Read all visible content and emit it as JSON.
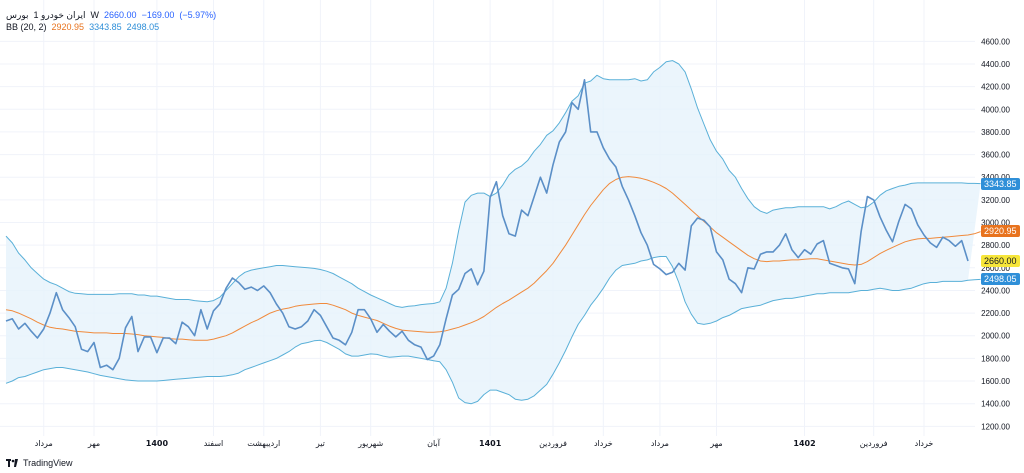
{
  "header": {
    "symbol": "ایران خودرو 1",
    "exchange": "بورس",
    "interval": "W",
    "close": "2660.00",
    "change": "−169.00",
    "change_pct": "(−5.97%)"
  },
  "indicator": {
    "name": "BB (20, 2)",
    "basis": "2920.95",
    "upper": "3343.85",
    "lower": "2498.05"
  },
  "price_tags": {
    "upper": "3343.85",
    "basis": "2920.95",
    "close": "2660.00",
    "lower": "2498.05"
  },
  "brand": "TradingView",
  "colors": {
    "price": "#5b8fc7",
    "band": "#5ab0d8",
    "basis": "#f08a3c",
    "fill": "#e6f3fb",
    "close_tag": "#f7e63a",
    "upper_tag": "#2f8fd8",
    "basis_tag": "#e8731e",
    "lower_tag": "#2f8fd8",
    "change": "#2962ff"
  },
  "chart_data": {
    "type": "line",
    "title": "ایران خودرو 1 · W",
    "ylim": [
      1150,
      4700
    ],
    "y_ticks": [
      1200,
      1400,
      1600,
      1800,
      2000,
      2200,
      2400,
      2600,
      2800,
      3000,
      3200,
      3400,
      3600,
      3800,
      4000,
      4200,
      4400,
      4600
    ],
    "x_labels": [
      {
        "label": "مرداد",
        "i": 6
      },
      {
        "label": "مهر",
        "i": 14
      },
      {
        "label": "1400",
        "i": 24
      },
      {
        "label": "اسفند",
        "i": 33
      },
      {
        "label": "اردیبهشت",
        "i": 41
      },
      {
        "label": "تیر",
        "i": 50
      },
      {
        "label": "شهریور",
        "i": 58
      },
      {
        "label": "آبان",
        "i": 68
      },
      {
        "label": "1401",
        "i": 77
      },
      {
        "label": "فروردین",
        "i": 87
      },
      {
        "label": "خرداد",
        "i": 95
      },
      {
        "label": "مرداد",
        "i": 104
      },
      {
        "label": "مهر",
        "i": 113
      },
      {
        "label": "1402",
        "i": 127
      },
      {
        "label": "فروردین",
        "i": 138
      },
      {
        "label": "خرداد",
        "i": 146
      }
    ],
    "series": [
      {
        "name": "Price",
        "values": [
          2130,
          2150,
          2060,
          2110,
          2040,
          1980,
          2060,
          2200,
          2380,
          2230,
          2160,
          2080,
          1880,
          1860,
          1940,
          1720,
          1740,
          1700,
          1800,
          2070,
          2170,
          1860,
          1990,
          1990,
          1850,
          1980,
          1980,
          1930,
          2120,
          2080,
          2000,
          2230,
          2060,
          2220,
          2280,
          2420,
          2510,
          2470,
          2410,
          2430,
          2400,
          2440,
          2380,
          2280,
          2200,
          2080,
          2060,
          2080,
          2130,
          2230,
          2180,
          2080,
          1980,
          1960,
          1920,
          2030,
          2230,
          2230,
          2150,
          2030,
          2100,
          2040,
          1990,
          2040,
          1960,
          1920,
          1900,
          1790,
          1820,
          1920,
          2150,
          2360,
          2410,
          2550,
          2590,
          2450,
          2570,
          3220,
          3360,
          3060,
          2900,
          2880,
          3110,
          3060,
          3230,
          3400,
          3260,
          3510,
          3710,
          3800,
          4060,
          4000,
          4260,
          3800,
          3800,
          3660,
          3560,
          3490,
          3320,
          3200,
          3060,
          2910,
          2800,
          2630,
          2590,
          2540,
          2560,
          2640,
          2580,
          2970,
          3040,
          3020,
          2960,
          2740,
          2670,
          2500,
          2460,
          2380,
          2600,
          2590,
          2720,
          2740,
          2740,
          2800,
          2900,
          2760,
          2690,
          2760,
          2720,
          2810,
          2840,
          2640,
          2620,
          2600,
          2590,
          2460,
          2920,
          3230,
          3200,
          3050,
          2930,
          2830,
          3010,
          3160,
          3120,
          2980,
          2890,
          2820,
          2780,
          2870,
          2840,
          2790,
          2840,
          2660
        ]
      },
      {
        "name": "Basis",
        "values": [
          2230,
          2220,
          2200,
          2175,
          2150,
          2120,
          2095,
          2075,
          2065,
          2060,
          2050,
          2040,
          2035,
          2030,
          2025,
          2025,
          2025,
          2020,
          2020,
          2020,
          2015,
          2010,
          2000,
          1995,
          1990,
          1985,
          1975,
          1970,
          1970,
          1965,
          1960,
          1960,
          1960,
          1970,
          1985,
          2000,
          2025,
          2055,
          2085,
          2115,
          2140,
          2170,
          2200,
          2220,
          2235,
          2245,
          2260,
          2270,
          2275,
          2280,
          2285,
          2285,
          2270,
          2250,
          2230,
          2200,
          2180,
          2165,
          2150,
          2135,
          2110,
          2085,
          2065,
          2050,
          2045,
          2040,
          2035,
          2030,
          2030,
          2035,
          2045,
          2060,
          2075,
          2095,
          2115,
          2140,
          2170,
          2210,
          2250,
          2285,
          2315,
          2350,
          2385,
          2420,
          2465,
          2520,
          2575,
          2640,
          2720,
          2800,
          2890,
          2980,
          3070,
          3150,
          3220,
          3290,
          3345,
          3380,
          3400,
          3405,
          3400,
          3390,
          3375,
          3355,
          3330,
          3300,
          3260,
          3210,
          3160,
          3110,
          3060,
          3010,
          2960,
          2910,
          2870,
          2830,
          2790,
          2750,
          2710,
          2680,
          2660,
          2655,
          2660,
          2660,
          2665,
          2670,
          2670,
          2675,
          2680,
          2680,
          2670,
          2660,
          2650,
          2640,
          2630,
          2625,
          2630,
          2655,
          2690,
          2725,
          2755,
          2780,
          2805,
          2830,
          2845,
          2855,
          2860,
          2860,
          2865,
          2870,
          2875,
          2880,
          2885,
          2890,
          2900,
          2920
        ]
      },
      {
        "name": "Upper",
        "values": [
          2880,
          2820,
          2730,
          2670,
          2600,
          2550,
          2500,
          2470,
          2450,
          2420,
          2390,
          2375,
          2370,
          2365,
          2365,
          2365,
          2365,
          2365,
          2370,
          2370,
          2370,
          2360,
          2360,
          2350,
          2350,
          2340,
          2330,
          2320,
          2320,
          2320,
          2310,
          2305,
          2300,
          2310,
          2340,
          2400,
          2460,
          2520,
          2560,
          2580,
          2590,
          2600,
          2610,
          2620,
          2620,
          2615,
          2610,
          2605,
          2600,
          2595,
          2585,
          2570,
          2550,
          2520,
          2490,
          2460,
          2420,
          2390,
          2360,
          2335,
          2310,
          2285,
          2260,
          2250,
          2260,
          2265,
          2275,
          2280,
          2285,
          2300,
          2420,
          2640,
          2930,
          3180,
          3240,
          3260,
          3260,
          3230,
          3260,
          3330,
          3420,
          3470,
          3500,
          3550,
          3630,
          3690,
          3770,
          3810,
          3880,
          3970,
          4070,
          4120,
          4230,
          4250,
          4300,
          4270,
          4260,
          4260,
          4260,
          4260,
          4270,
          4250,
          4260,
          4330,
          4370,
          4420,
          4430,
          4400,
          4330,
          4180,
          4010,
          3870,
          3730,
          3630,
          3560,
          3460,
          3400,
          3300,
          3210,
          3140,
          3100,
          3080,
          3110,
          3120,
          3130,
          3130,
          3140,
          3140,
          3140,
          3140,
          3140,
          3120,
          3140,
          3170,
          3190,
          3160,
          3130,
          3140,
          3180,
          3240,
          3280,
          3300,
          3320,
          3330,
          3345,
          3350,
          3350,
          3350,
          3350,
          3350,
          3350,
          3350,
          3350,
          3345,
          3345,
          3344
        ]
      },
      {
        "name": "Lower",
        "values": [
          1580,
          1600,
          1630,
          1640,
          1660,
          1680,
          1700,
          1710,
          1720,
          1720,
          1710,
          1700,
          1690,
          1680,
          1665,
          1650,
          1640,
          1630,
          1620,
          1610,
          1605,
          1600,
          1600,
          1600,
          1600,
          1605,
          1610,
          1615,
          1620,
          1625,
          1630,
          1635,
          1640,
          1640,
          1640,
          1645,
          1655,
          1670,
          1700,
          1720,
          1740,
          1760,
          1780,
          1800,
          1830,
          1860,
          1900,
          1930,
          1940,
          1955,
          1960,
          1940,
          1910,
          1880,
          1840,
          1820,
          1820,
          1830,
          1840,
          1835,
          1820,
          1810,
          1815,
          1820,
          1820,
          1810,
          1800,
          1790,
          1780,
          1770,
          1700,
          1590,
          1450,
          1410,
          1400,
          1420,
          1480,
          1520,
          1520,
          1500,
          1480,
          1440,
          1430,
          1440,
          1470,
          1520,
          1570,
          1660,
          1760,
          1870,
          1990,
          2100,
          2180,
          2270,
          2340,
          2420,
          2510,
          2580,
          2620,
          2630,
          2640,
          2660,
          2670,
          2690,
          2700,
          2700,
          2610,
          2470,
          2300,
          2190,
          2110,
          2100,
          2110,
          2130,
          2160,
          2180,
          2210,
          2240,
          2250,
          2260,
          2270,
          2290,
          2310,
          2320,
          2330,
          2330,
          2340,
          2350,
          2360,
          2370,
          2370,
          2380,
          2380,
          2380,
          2380,
          2390,
          2400,
          2400,
          2410,
          2420,
          2410,
          2400,
          2400,
          2410,
          2420,
          2440,
          2460,
          2470,
          2470,
          2480,
          2480,
          2480,
          2480,
          2490,
          2495,
          2498
        ]
      }
    ]
  }
}
